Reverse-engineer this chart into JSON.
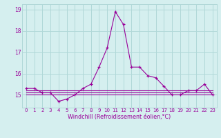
{
  "xlabel": "Windchill (Refroidissement éolien,°C)",
  "x": [
    0,
    1,
    2,
    3,
    4,
    5,
    6,
    7,
    8,
    9,
    10,
    11,
    12,
    13,
    14,
    15,
    16,
    17,
    18,
    19,
    20,
    21,
    22,
    23
  ],
  "y_main": [
    15.3,
    15.3,
    15.1,
    15.1,
    14.7,
    14.8,
    15.0,
    15.3,
    15.5,
    16.3,
    17.2,
    18.9,
    18.3,
    16.3,
    16.3,
    15.9,
    15.8,
    15.4,
    15.0,
    15.0,
    15.2,
    15.2,
    15.5,
    15.0
  ],
  "y_flat1": [
    15.0,
    15.0,
    15.0,
    15.0,
    15.0,
    15.0,
    15.0,
    15.0,
    15.0,
    15.0,
    15.0,
    15.0,
    15.0,
    15.0,
    15.0,
    15.0,
    15.0,
    15.0,
    15.0,
    15.0,
    15.0,
    15.0,
    15.0,
    15.0
  ],
  "y_flat2": [
    15.1,
    15.1,
    15.1,
    15.1,
    15.1,
    15.1,
    15.1,
    15.1,
    15.1,
    15.1,
    15.1,
    15.1,
    15.1,
    15.1,
    15.1,
    15.1,
    15.1,
    15.1,
    15.1,
    15.1,
    15.1,
    15.1,
    15.1,
    15.1
  ],
  "y_flat3": [
    15.2,
    15.2,
    15.2,
    15.2,
    15.2,
    15.2,
    15.2,
    15.2,
    15.2,
    15.2,
    15.2,
    15.2,
    15.2,
    15.2,
    15.2,
    15.2,
    15.2,
    15.2,
    15.2,
    15.2,
    15.2,
    15.2,
    15.2,
    15.2
  ],
  "line_color": "#990099",
  "bg_color": "#d5efef",
  "grid_color": "#b0d8d8",
  "ylim_min": 14.4,
  "ylim_max": 19.25,
  "yticks": [
    15,
    16,
    17,
    18,
    19
  ],
  "xtick_labels": [
    "0",
    "1",
    "2",
    "3",
    "4",
    "5",
    "6",
    "7",
    "8",
    "9",
    "1011121314151617181920212223"
  ],
  "xlabel_fontsize": 5.8,
  "ylabel_fontsize": 5.5,
  "tick_fontsize": 5.0
}
